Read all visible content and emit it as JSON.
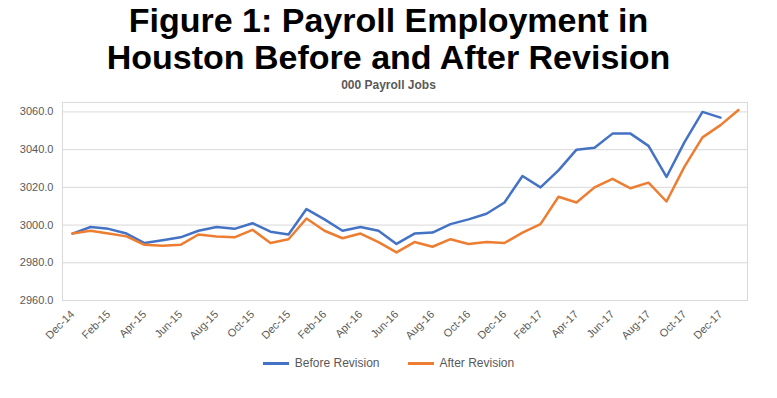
{
  "chart_data": {
    "type": "line",
    "title": "Figure 1: Payroll Employment in Houston Before and After Revision",
    "subtitle": "000 Payroll Jobs",
    "categories": [
      "Dec-14",
      null,
      "Feb-15",
      null,
      "Apr-15",
      null,
      "Jun-15",
      null,
      "Aug-15",
      null,
      "Oct-15",
      null,
      "Dec-15",
      null,
      "Feb-16",
      null,
      "Apr-16",
      null,
      "Jun-16",
      null,
      "Aug-16",
      null,
      "Oct-16",
      null,
      "Dec-16",
      null,
      "Feb-17",
      null,
      "Apr-17",
      null,
      "Jun-17",
      null,
      "Aug-17",
      null,
      "Oct-17",
      null,
      "Dec-17",
      null
    ],
    "series": [
      {
        "name": "Before Revision",
        "color": "#4472c4",
        "values": [
          2995.5,
          2999,
          2998,
          2995.5,
          2990.5,
          2992,
          2993.5,
          2997,
          2999,
          2998,
          3001,
          2996.5,
          2995,
          3008.5,
          3003,
          2997,
          2999,
          2997,
          2990,
          2995.5,
          2996,
          3000.5,
          3003,
          3006,
          3012,
          3026,
          3020,
          3029,
          3040,
          3041,
          3048.5,
          3048.5,
          3042,
          3025.5,
          3044,
          3060,
          3057,
          null
        ]
      },
      {
        "name": "After Revision",
        "color": "#ed7d31",
        "values": [
          2995.5,
          2997,
          2995.5,
          2994,
          2989.5,
          2989,
          2989.5,
          2995,
          2994,
          2993.5,
          2997.5,
          2990.5,
          2992.5,
          3003.5,
          2997,
          2993,
          2995.5,
          2991,
          2985.5,
          2991,
          2988.5,
          2992.5,
          2990,
          2991,
          2990.5,
          2996,
          3000.5,
          3015,
          3012,
          3020,
          3024.5,
          3019.5,
          3022.5,
          3012.5,
          3031,
          3046.5,
          3053,
          3061
        ]
      }
    ],
    "ylim": [
      2960,
      3065
    ],
    "yticks": [
      {
        "value": 2960,
        "label": "2960.0"
      },
      {
        "value": 2980,
        "label": "2980.0"
      },
      {
        "value": 3000,
        "label": "3000.0"
      },
      {
        "value": 3020,
        "label": "3020.0"
      },
      {
        "value": 3040,
        "label": "3040.0"
      },
      {
        "value": 3060,
        "label": "3060.0"
      }
    ],
    "grid": true,
    "legend": "bottom"
  }
}
